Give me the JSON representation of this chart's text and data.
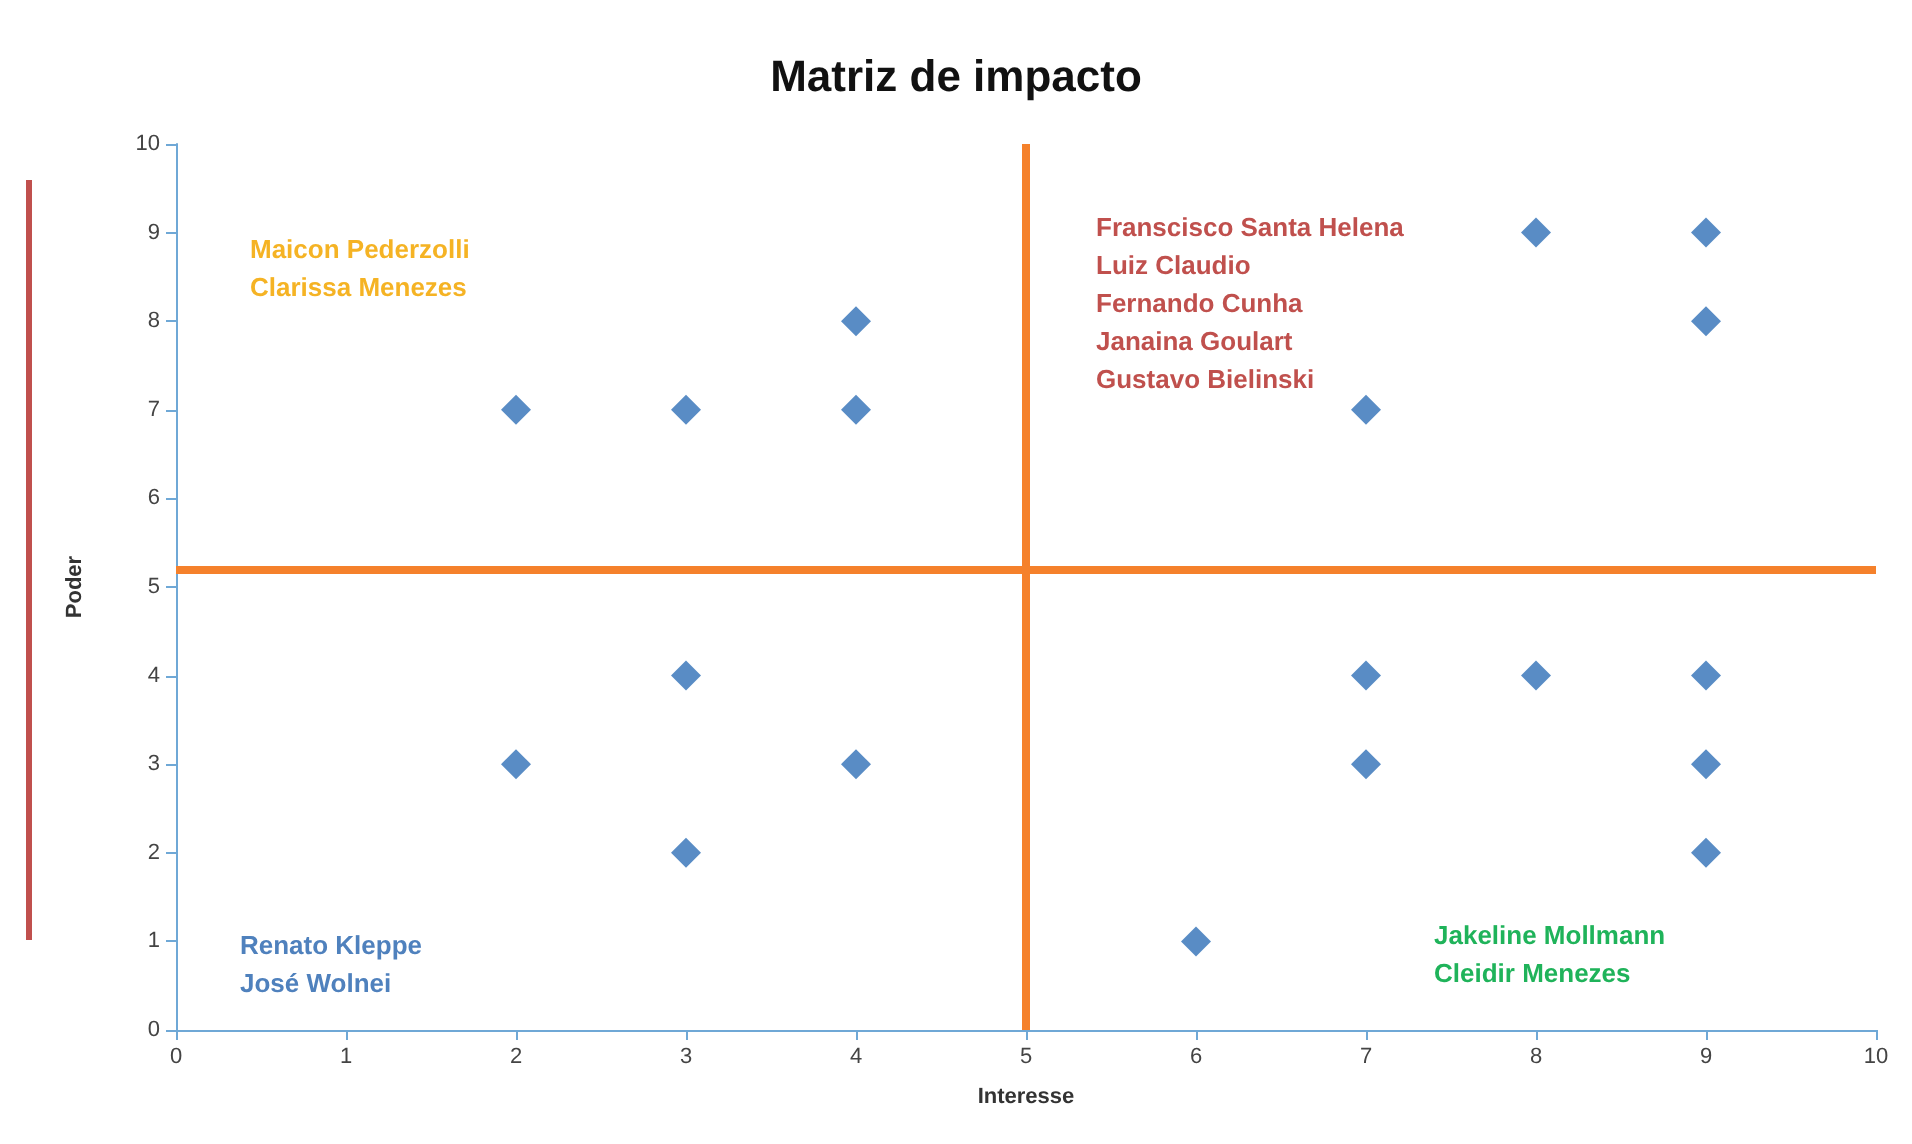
{
  "chart_data": {
    "type": "scatter",
    "title": "Matriz de impacto",
    "xlabel": "Interesse",
    "ylabel": "Poder",
    "x": [
      2,
      3,
      4,
      4,
      8,
      9,
      9,
      7,
      3,
      2,
      4,
      3,
      7,
      8,
      9,
      7,
      9,
      9,
      6
    ],
    "values": [
      7,
      7,
      7,
      8,
      9,
      9,
      8,
      7,
      4,
      3,
      3,
      2,
      4,
      4,
      4,
      3,
      3,
      2,
      1
    ],
    "color": "#2f6fb7",
    "marker": "diamond",
    "grid": false,
    "xlim": [
      0,
      10
    ],
    "xticks": [
      0,
      1,
      2,
      3,
      4,
      5,
      6,
      7,
      8,
      9,
      10
    ],
    "ylim": [
      0,
      10
    ],
    "yticks": [
      0,
      1,
      2,
      3,
      4,
      5,
      6,
      7,
      8,
      9,
      10
    ],
    "ref_lines": [
      {
        "axis": "x",
        "value": 5,
        "color": "#f5812b"
      },
      {
        "axis": "y",
        "value": 5.2,
        "color": "#f5812b"
      }
    ],
    "annotations": [
      "Maicon Pederzolli\nClarissa Menezes",
      "Franscisco Santa Helena\nLuiz Claudio\nFernando Cunha\nJanaina Goulart\nGustavo Bielinski",
      "Renato Kleppe\nJosé Wolnei",
      "Jakeline Mollmann\nCleidir Menezes"
    ]
  }
}
